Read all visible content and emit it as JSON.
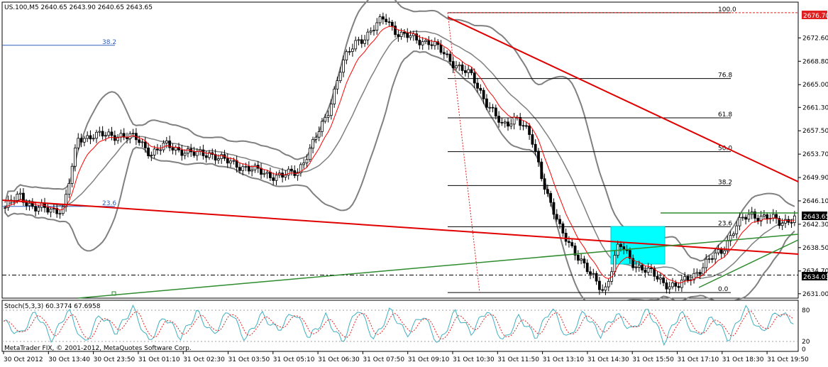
{
  "window": {
    "symbol_header": "US.100,M5  2640.65 2643.90 2640.65 2643.65",
    "copyright": "MetaTrader FIX, © 2001-2012, MetaQuotes Software Corp."
  },
  "colors": {
    "background": "#ffffff",
    "candle": "#000000",
    "ma": "#ff0000",
    "bollinger": "#808080",
    "fib": "#000000",
    "trend_red": "#e00000",
    "trend_green": "#2e8b2e",
    "rect": "#00ffff",
    "stoch_main": "#40b0c0",
    "stoch_signal": "#e02020",
    "price_badge_red": "#e02020",
    "price_badge_black": "#000000"
  },
  "price_scale": {
    "ticks": [
      "2672.60",
      "2668.80",
      "2665.00",
      "2661.30",
      "2657.50",
      "2653.70",
      "2649.90",
      "2646.10",
      "2642.30",
      "2638.50",
      "2634.70",
      "2631.00"
    ],
    "top_badge": "2676.70",
    "current_badge": "2643.65",
    "low_badge": "2634.03"
  },
  "stoch": {
    "label": "Stoch(5,3,3) 60.3774 67.6958",
    "levels": [
      "80",
      "20",
      "0"
    ]
  },
  "time_axis": {
    "labels": [
      "30 Oct 2012",
      "30 Oct 13:40",
      "30 Oct 23:50",
      "31 Oct 01:10",
      "31 Oct 02:30",
      "31 Oct 03:50",
      "31 Oct 05:10",
      "31 Oct 06:30",
      "31 Oct 07:50",
      "31 Oct 09:10",
      "31 Oct 10:30",
      "31 Oct 11:50",
      "31 Oct 13:10",
      "31 Oct 14:30",
      "31 Oct 15:50",
      "31 Oct 17:10",
      "31 Oct 18:30",
      "31 Oct 19:50"
    ]
  },
  "fib_main": {
    "levels": [
      {
        "label": "100.0",
        "price": 2676.7
      },
      {
        "label": "76.8",
        "price": 2666.0
      },
      {
        "label": "61.8",
        "price": 2659.6
      },
      {
        "label": "50.0",
        "price": 2654.1
      },
      {
        "label": "38.2",
        "price": 2648.6
      },
      {
        "label": "23.6",
        "price": 2641.9
      },
      {
        "label": "0.0",
        "price": 2631.2
      }
    ]
  },
  "fib_left": {
    "levels": [
      {
        "label": "38.2",
        "price": 2671.4
      },
      {
        "label": "23.6",
        "price": 2645.2
      }
    ]
  },
  "chart_data": {
    "type": "candlestick",
    "symbol": "US.100",
    "timeframe": "M5",
    "ohlc_last": {
      "open": 2640.65,
      "high": 2643.9,
      "low": 2640.65,
      "close": 2643.65
    },
    "ylim": [
      2630.4,
      2678.3
    ],
    "current_price": 2643.65,
    "path_keypoints": [
      2645,
      2647,
      2645,
      2644.5,
      2645,
      2656,
      2657,
      2656.5,
      2657,
      2656,
      2654,
      2655,
      2654.5,
      2653.5,
      2654,
      2652.5,
      2652,
      2651,
      2650.5,
      2650,
      2651,
      2655,
      2660,
      2668,
      2672,
      2673.5,
      2676,
      2673,
      2672.5,
      2672,
      2670,
      2668,
      2666,
      2662,
      2658,
      2660,
      2656,
      2648,
      2641,
      2638,
      2634,
      2631.5,
      2639,
      2636,
      2634.5,
      2633,
      2632,
      2634,
      2636,
      2638,
      2642,
      2644,
      2643.5,
      2642.5,
      2643.65
    ],
    "stoch_keypoints": [
      60,
      30,
      80,
      20,
      85,
      10,
      75,
      35,
      90,
      15,
      70,
      25,
      80,
      30,
      85,
      20,
      75,
      40,
      80,
      25,
      70,
      15,
      90,
      20,
      85,
      30,
      75,
      10,
      80,
      35,
      85,
      15,
      70,
      25,
      90,
      20,
      80,
      30,
      75,
      40,
      85,
      15,
      80,
      25,
      70,
      20,
      90,
      35,
      80,
      60
    ]
  }
}
